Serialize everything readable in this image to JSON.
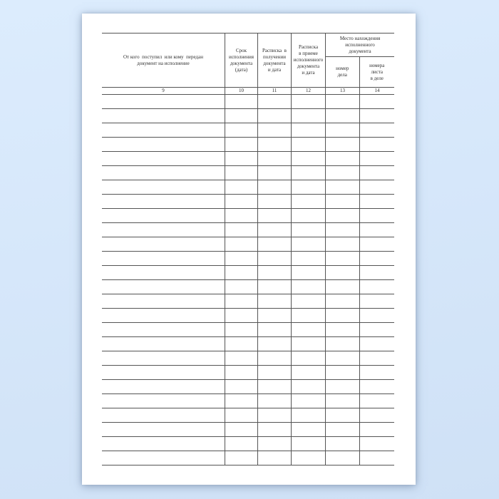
{
  "document": {
    "kind": "blank-registration-journal-page",
    "table": {
      "headers": {
        "col9": "От кого  поступил  или кому  передан\nдокумент на исполнение",
        "col10": "Срок\nисполнения\nдокумента\n(дата)",
        "col11": "Расписка  в\nполучении\nдокумента\nи дата",
        "col12": "Расписка\nв приеме\nисполненного\nдокумента\nи дата",
        "group13_14": "Место нахождения\nисполненного\nдокумента",
        "col13": "номер\nдела",
        "col14": "номера\nлиста\nв деле"
      },
      "column_numbers": [
        "9",
        "10",
        "11",
        "12",
        "13",
        "14"
      ],
      "body_row_count": 26
    },
    "colors": {
      "background_top": "#dcecfd",
      "background_bottom": "#cfe1f6",
      "page": "#ffffff",
      "grid_line": "#545454",
      "text": "#2e2e2e",
      "shadow": "rgba(104,125,155,0.6)"
    }
  }
}
